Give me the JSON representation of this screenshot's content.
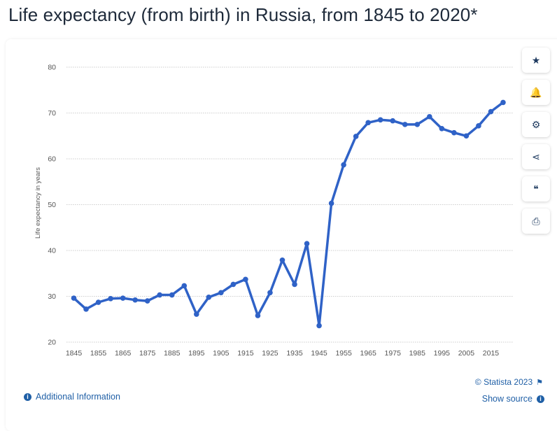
{
  "title": "Life expectancy (from birth) in Russia, from 1845 to 2020*",
  "sidebar": {
    "buttons": [
      {
        "icon": "star-icon",
        "glyph": "★"
      },
      {
        "icon": "bell-icon",
        "glyph": "🔔"
      },
      {
        "icon": "gear-icon",
        "glyph": "⚙"
      },
      {
        "icon": "share-icon",
        "glyph": "⋖"
      },
      {
        "icon": "quote-icon",
        "glyph": "❝"
      },
      {
        "icon": "print-icon",
        "glyph": "⎙"
      }
    ]
  },
  "footer": {
    "additional_info": "Additional Information",
    "credit": "© Statista 2023",
    "show_source": "Show source"
  },
  "colors": {
    "line": "#2f62c7",
    "grid": "#bfbfbf",
    "axis_text": "#555555",
    "link": "#1f5fa6"
  },
  "chart_data": {
    "type": "line",
    "title": "",
    "xlabel": "",
    "ylabel": "Life expectancy in years",
    "ylim": [
      20,
      80
    ],
    "yticks": [
      20,
      30,
      40,
      50,
      60,
      70,
      80
    ],
    "xticks": [
      1845,
      1855,
      1865,
      1875,
      1885,
      1895,
      1905,
      1915,
      1925,
      1935,
      1945,
      1955,
      1965,
      1975,
      1985,
      1995,
      2005,
      2015
    ],
    "grid": true,
    "x": [
      1845,
      1850,
      1855,
      1860,
      1865,
      1870,
      1875,
      1880,
      1885,
      1890,
      1895,
      1900,
      1905,
      1910,
      1915,
      1920,
      1925,
      1930,
      1935,
      1940,
      1945,
      1950,
      1955,
      1960,
      1965,
      1970,
      1975,
      1980,
      1985,
      1990,
      1995,
      2000,
      2005,
      2010,
      2015,
      2020
    ],
    "values": [
      29.6,
      27.2,
      28.7,
      29.5,
      29.6,
      29.2,
      29.0,
      30.3,
      30.3,
      32.3,
      26.1,
      29.8,
      30.8,
      32.6,
      33.7,
      25.8,
      30.8,
      37.9,
      32.6,
      41.5,
      23.6,
      50.3,
      58.7,
      64.9,
      67.9,
      68.5,
      68.3,
      67.5,
      67.5,
      69.2,
      66.6,
      65.7,
      65.0,
      67.2,
      70.3,
      72.3
    ]
  }
}
